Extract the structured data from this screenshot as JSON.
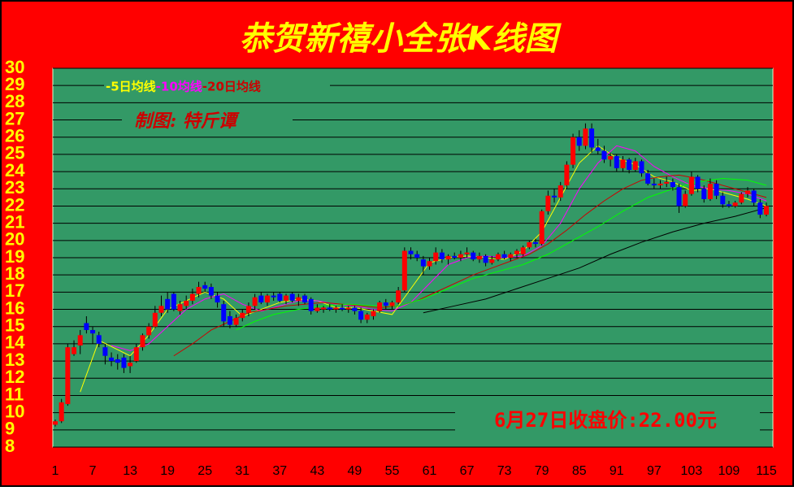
{
  "chart_data": {
    "type": "candlestick",
    "title": "恭贺新禧小全张K线图",
    "credit": "制图: 特斤谭",
    "annotation": "6月27日收盘价:22.00元",
    "background": "#ff0000",
    "plot_color": "#339966",
    "up_color": "#ff0000",
    "down_color": "#0000ff",
    "xlim": [
      1,
      115
    ],
    "xticks": [
      1,
      7,
      13,
      19,
      25,
      31,
      37,
      43,
      49,
      55,
      61,
      67,
      73,
      79,
      85,
      91,
      97,
      103,
      109,
      115
    ],
    "ylim": [
      8,
      30
    ],
    "yticks": [
      8,
      9,
      10,
      11,
      12,
      13,
      14,
      15,
      16,
      17,
      18,
      19,
      20,
      21,
      22,
      23,
      24,
      25,
      26,
      27,
      28,
      29,
      30
    ],
    "grid": true,
    "ohlc": [
      [
        9.3,
        9.6,
        9.2,
        9.5
      ],
      [
        9.5,
        10.8,
        9.4,
        10.6
      ],
      [
        10.5,
        14.0,
        10.4,
        13.8
      ],
      [
        13.4,
        14.2,
        13.3,
        13.8
      ],
      [
        13.9,
        14.8,
        13.4,
        14.5
      ],
      [
        15.2,
        15.6,
        14.6,
        14.8
      ],
      [
        14.8,
        15.0,
        14.0,
        14.6
      ],
      [
        14.5,
        14.7,
        13.8,
        14.0
      ],
      [
        13.8,
        14.0,
        12.8,
        13.3
      ],
      [
        13.2,
        13.5,
        12.7,
        13.0
      ],
      [
        13.1,
        13.4,
        12.5,
        12.9
      ],
      [
        13.2,
        13.4,
        12.3,
        12.6
      ],
      [
        12.7,
        13.3,
        12.3,
        12.9
      ],
      [
        13.0,
        14.0,
        12.9,
        13.8
      ],
      [
        13.8,
        14.6,
        13.6,
        14.5
      ],
      [
        14.5,
        15.2,
        14.3,
        15.0
      ],
      [
        15.0,
        16.2,
        14.9,
        15.8
      ],
      [
        15.8,
        16.8,
        15.6,
        16.2
      ],
      [
        16.6,
        17.0,
        15.8,
        16.0
      ],
      [
        16.9,
        17.0,
        15.9,
        16.0
      ],
      [
        15.9,
        16.5,
        15.7,
        16.3
      ],
      [
        16.2,
        16.8,
        16.0,
        16.5
      ],
      [
        16.5,
        17.2,
        16.3,
        16.9
      ],
      [
        16.9,
        17.6,
        16.7,
        17.3
      ],
      [
        17.4,
        17.6,
        17.0,
        17.2
      ],
      [
        17.3,
        17.5,
        16.6,
        16.8
      ],
      [
        16.8,
        17.0,
        16.1,
        16.4
      ],
      [
        16.3,
        16.5,
        15.0,
        15.3
      ],
      [
        15.6,
        15.9,
        14.9,
        15.1
      ],
      [
        15.1,
        15.7,
        15.0,
        15.5
      ],
      [
        15.5,
        16.0,
        15.3,
        15.8
      ],
      [
        15.8,
        16.4,
        15.6,
        16.2
      ],
      [
        16.2,
        16.9,
        16.0,
        16.7
      ],
      [
        16.8,
        17.0,
        16.3,
        16.4
      ],
      [
        16.4,
        16.9,
        16.2,
        16.8
      ],
      [
        16.8,
        17.0,
        16.5,
        16.7
      ],
      [
        16.9,
        17.0,
        16.4,
        16.5
      ],
      [
        16.5,
        16.9,
        16.3,
        16.8
      ],
      [
        16.9,
        17.0,
        16.4,
        16.5
      ],
      [
        16.5,
        16.9,
        16.2,
        16.7
      ],
      [
        16.8,
        16.9,
        16.3,
        16.4
      ],
      [
        16.6,
        16.7,
        15.7,
        15.9
      ],
      [
        15.9,
        16.3,
        15.8,
        16.1
      ],
      [
        16.0,
        16.2,
        15.8,
        16.1
      ],
      [
        16.1,
        16.3,
        15.9,
        16.0
      ],
      [
        16.0,
        16.2,
        15.8,
        16.1
      ],
      [
        16.1,
        16.3,
        15.9,
        16.0
      ],
      [
        16.0,
        16.2,
        15.8,
        16.1
      ],
      [
        16.1,
        16.2,
        15.7,
        15.9
      ],
      [
        15.9,
        16.1,
        15.2,
        15.4
      ],
      [
        15.4,
        15.8,
        15.2,
        15.7
      ],
      [
        15.6,
        16.0,
        15.4,
        15.9
      ],
      [
        15.9,
        16.5,
        15.8,
        16.4
      ],
      [
        16.4,
        16.6,
        16.0,
        16.2
      ],
      [
        16.2,
        16.5,
        16.0,
        16.4
      ],
      [
        16.4,
        17.3,
        16.3,
        17.1
      ],
      [
        17.1,
        19.6,
        17.0,
        19.4
      ],
      [
        19.4,
        19.6,
        18.9,
        19.2
      ],
      [
        19.2,
        19.4,
        18.8,
        19.0
      ],
      [
        18.9,
        19.1,
        18.0,
        18.5
      ],
      [
        18.5,
        19.0,
        18.3,
        18.8
      ],
      [
        18.8,
        19.6,
        18.6,
        19.3
      ],
      [
        19.3,
        19.5,
        18.7,
        18.9
      ],
      [
        18.9,
        19.2,
        18.6,
        19.1
      ],
      [
        19.1,
        19.3,
        18.9,
        19.0
      ],
      [
        19.0,
        19.4,
        18.8,
        19.2
      ],
      [
        19.2,
        19.6,
        19.0,
        19.3
      ],
      [
        19.3,
        19.4,
        18.8,
        18.9
      ],
      [
        18.9,
        19.3,
        18.7,
        19.1
      ],
      [
        19.1,
        19.2,
        18.5,
        18.7
      ],
      [
        18.7,
        19.1,
        18.6,
        18.9
      ],
      [
        18.9,
        19.3,
        18.8,
        19.2
      ],
      [
        19.2,
        19.4,
        18.9,
        19.0
      ],
      [
        19.0,
        19.3,
        18.8,
        19.2
      ],
      [
        19.2,
        19.5,
        19.0,
        19.4
      ],
      [
        19.2,
        19.7,
        19.1,
        19.6
      ],
      [
        19.6,
        20.0,
        19.5,
        19.9
      ],
      [
        19.9,
        20.1,
        19.6,
        19.8
      ],
      [
        19.8,
        21.8,
        19.7,
        21.7
      ],
      [
        21.7,
        22.9,
        21.5,
        22.6
      ],
      [
        22.6,
        23.0,
        22.2,
        22.5
      ],
      [
        22.5,
        23.4,
        22.3,
        23.2
      ],
      [
        23.2,
        24.6,
        23.0,
        24.4
      ],
      [
        24.4,
        26.2,
        24.2,
        26.0
      ],
      [
        26.0,
        26.4,
        25.2,
        25.5
      ],
      [
        25.5,
        26.8,
        25.3,
        26.5
      ],
      [
        26.5,
        26.8,
        25.1,
        25.4
      ],
      [
        25.4,
        25.9,
        25.0,
        25.2
      ],
      [
        25.2,
        25.5,
        24.5,
        24.7
      ],
      [
        24.7,
        25.1,
        24.3,
        24.9
      ],
      [
        24.9,
        25.0,
        24.0,
        24.2
      ],
      [
        24.2,
        24.9,
        24.0,
        24.7
      ],
      [
        24.7,
        24.8,
        23.9,
        24.1
      ],
      [
        24.1,
        24.8,
        24.0,
        24.6
      ],
      [
        24.6,
        24.7,
        23.7,
        23.9
      ],
      [
        23.9,
        24.1,
        23.2,
        23.3
      ],
      [
        23.3,
        23.6,
        23.0,
        23.2
      ],
      [
        23.2,
        23.5,
        23.0,
        23.3
      ],
      [
        23.3,
        23.7,
        23.1,
        23.4
      ],
      [
        23.4,
        23.6,
        22.9,
        23.1
      ],
      [
        23.1,
        23.3,
        21.6,
        22.0
      ],
      [
        22.0,
        22.9,
        21.9,
        22.7
      ],
      [
        22.7,
        24.0,
        22.6,
        23.7
      ],
      [
        23.7,
        23.8,
        22.8,
        23.0
      ],
      [
        23.0,
        23.2,
        22.2,
        22.4
      ],
      [
        22.4,
        23.6,
        22.3,
        23.3
      ],
      [
        23.3,
        23.5,
        22.4,
        22.6
      ],
      [
        22.6,
        22.8,
        21.9,
        22.1
      ],
      [
        22.1,
        22.3,
        21.9,
        22.0
      ],
      [
        22.0,
        22.3,
        21.9,
        22.2
      ],
      [
        22.2,
        22.8,
        22.1,
        22.7
      ],
      [
        22.7,
        23.1,
        22.5,
        22.9
      ],
      [
        22.9,
        23.0,
        22.0,
        22.2
      ],
      [
        22.2,
        22.4,
        21.3,
        21.5
      ],
      [
        21.5,
        22.2,
        21.4,
        22.0
      ]
    ],
    "series": [
      {
        "name": "-5日均线",
        "color": "#ffff00",
        "x": [
          5,
          8,
          13,
          16,
          19,
          22,
          25,
          28,
          31,
          34,
          37,
          40,
          43,
          46,
          49,
          52,
          55,
          58,
          61,
          64,
          67,
          70,
          73,
          76,
          79,
          82,
          85,
          88,
          91,
          94,
          97,
          100,
          103,
          106,
          109,
          112,
          115
        ],
        "values": [
          11.2,
          14.2,
          13.3,
          14.5,
          16.0,
          16.5,
          17.0,
          16.6,
          15.6,
          16.0,
          16.4,
          16.6,
          16.5,
          16.1,
          16.1,
          15.9,
          15.7,
          17.2,
          18.7,
          19.0,
          19.1,
          19.0,
          18.9,
          19.4,
          20.5,
          22.5,
          24.5,
          25.5,
          24.8,
          24.4,
          23.7,
          23.4,
          22.9,
          23.0,
          22.7,
          22.4,
          22.0
        ]
      },
      {
        "name": "-10均线",
        "color": "#ff00ff",
        "x": [
          10,
          13,
          16,
          19,
          22,
          25,
          28,
          31,
          34,
          37,
          40,
          43,
          46,
          49,
          52,
          55,
          58,
          61,
          64,
          67,
          70,
          73,
          76,
          79,
          82,
          85,
          88,
          91,
          94,
          97,
          100,
          103,
          106,
          109,
          112,
          115
        ],
        "values": [
          13.9,
          13.6,
          14.0,
          15.0,
          16.0,
          16.6,
          16.9,
          16.3,
          15.9,
          16.2,
          16.5,
          16.5,
          16.3,
          16.2,
          16.0,
          15.9,
          16.4,
          17.5,
          18.6,
          19.0,
          19.1,
          19.0,
          19.1,
          19.7,
          21.0,
          23.0,
          24.5,
          25.5,
          25.2,
          24.3,
          23.7,
          23.2,
          23.0,
          22.9,
          22.7,
          22.3
        ]
      },
      {
        "name": "-20日均线",
        "color": "#cc0000",
        "x": [
          20,
          23,
          26,
          29,
          32,
          35,
          38,
          41,
          44,
          47,
          50,
          53,
          56,
          59,
          62,
          65,
          68,
          71,
          74,
          77,
          80,
          83,
          86,
          89,
          92,
          95,
          98,
          101,
          104,
          107,
          110,
          113,
          115
        ],
        "values": [
          13.3,
          14.0,
          14.8,
          15.3,
          15.8,
          16.0,
          16.2,
          16.3,
          16.4,
          16.3,
          16.2,
          16.1,
          16.2,
          16.5,
          17.0,
          17.5,
          18.0,
          18.4,
          18.8,
          19.2,
          19.8,
          20.6,
          21.5,
          22.3,
          23.0,
          23.5,
          23.7,
          23.8,
          23.6,
          23.3,
          23.0,
          22.7,
          22.5
        ]
      },
      {
        "color": "#00ff00",
        "x": [
          30,
          33,
          36,
          40,
          44,
          48,
          52,
          56,
          60,
          64,
          68,
          72,
          76,
          80,
          84,
          88,
          92,
          96,
          100,
          104,
          108,
          112,
          115
        ],
        "values": [
          14.8,
          15.3,
          15.7,
          16.0,
          16.2,
          16.3,
          16.2,
          16.2,
          16.6,
          17.2,
          17.8,
          18.2,
          18.6,
          19.2,
          20.0,
          20.8,
          21.7,
          22.5,
          23.0,
          23.4,
          23.6,
          23.5,
          23.2
        ]
      },
      {
        "color": "#000000",
        "x": [
          60,
          65,
          70,
          75,
          80,
          85,
          90,
          95,
          100,
          105,
          110,
          115
        ],
        "values": [
          15.8,
          16.2,
          16.6,
          17.2,
          17.8,
          18.4,
          19.2,
          19.9,
          20.5,
          21.0,
          21.4,
          21.9
        ]
      }
    ]
  }
}
